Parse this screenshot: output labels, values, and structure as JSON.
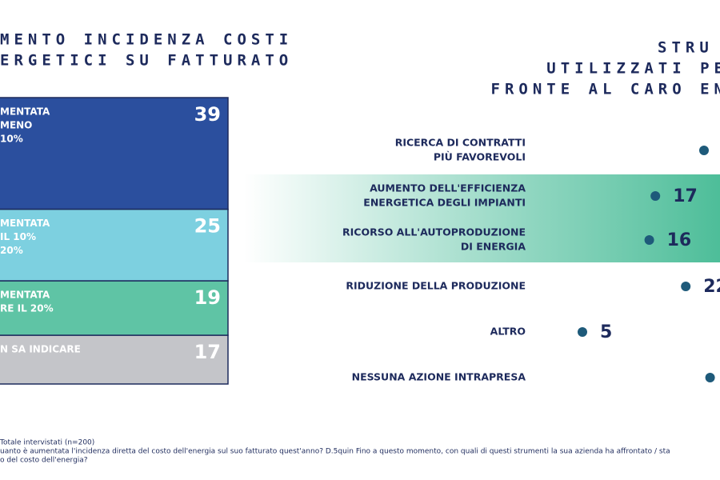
{
  "chart_data": [
    {
      "type": "stacked-block",
      "title": [
        "MENTO INCIDENZA COSTI",
        "ERGETICI SU FATTURATO"
      ],
      "categories": [
        [
          "MENTATA",
          "MENO",
          "10%"
        ],
        [
          "MENTATA",
          "IL 10%",
          "20%"
        ],
        [
          "MENTATA",
          "RE IL 20%"
        ],
        [
          "N SA INDICARE"
        ]
      ],
      "values": [
        39,
        25,
        19,
        17
      ],
      "colors": [
        "#2b4f9e",
        "#7dd0e0",
        "#5fc4a5",
        "#c4c5c9"
      ]
    },
    {
      "type": "lollipop",
      "title": [
        "STRU",
        "UTILIZZATI PE",
        "FRONTE AL CARO EN"
      ],
      "categories": [
        [
          "RICERCA DI CONTRATTI",
          "PIÙ FAVOREVOLI"
        ],
        [
          "AUMENTO DELL'EFFICIENZA",
          "ENERGETICA DEGLI IMPIANTI"
        ],
        [
          "RICORSO ALL'AUTOPRODUZIONE",
          "DI ENERGIA"
        ],
        [
          "RIDUZIONE DELLA PRODUZIONE"
        ],
        [
          "ALTRO"
        ],
        [
          "NESSUNA AZIONE INTRAPRESA"
        ]
      ],
      "values": [
        25,
        17,
        16,
        22,
        5,
        26
      ],
      "highlight": [
        1,
        2
      ],
      "color": "#1e5a7a"
    }
  ],
  "notes": [
    "Totale intervistati (n=200)",
    "uanto è aumentata l'incidenza diretta del costo dell'energia sul suo fatturato quest'anno? D.5quin Fino a questo momento, con quali di questi strumenti la sua azienda ha affrontato / sta",
    "o del costo dell'energia?"
  ]
}
